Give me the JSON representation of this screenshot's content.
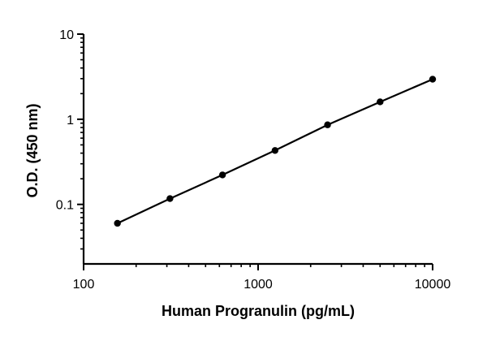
{
  "chart_data": {
    "type": "scatter",
    "xlabel": "Human Progranulin (pg/mL)",
    "ylabel": "O.D. (450 nm)",
    "x_scale": "log",
    "y_scale": "log",
    "xlim": [
      100,
      10000
    ],
    "ylim": [
      0.02,
      10
    ],
    "x_ticks": [
      100,
      1000,
      10000
    ],
    "y_ticks": [
      0.1,
      1,
      10
    ],
    "x_tick_labels": [
      "100",
      "1000",
      "10000"
    ],
    "y_tick_labels": [
      "0.1",
      "1",
      "10"
    ],
    "grid": false,
    "fit_line": true,
    "series": [
      {
        "x": [
          156.25,
          312.5,
          625,
          1250,
          2500,
          5000,
          10000
        ],
        "y": [
          0.06,
          0.117,
          0.222,
          0.43,
          0.86,
          1.6,
          2.95
        ]
      }
    ],
    "colors": {
      "line": "#000000",
      "marker": "#000000"
    }
  }
}
